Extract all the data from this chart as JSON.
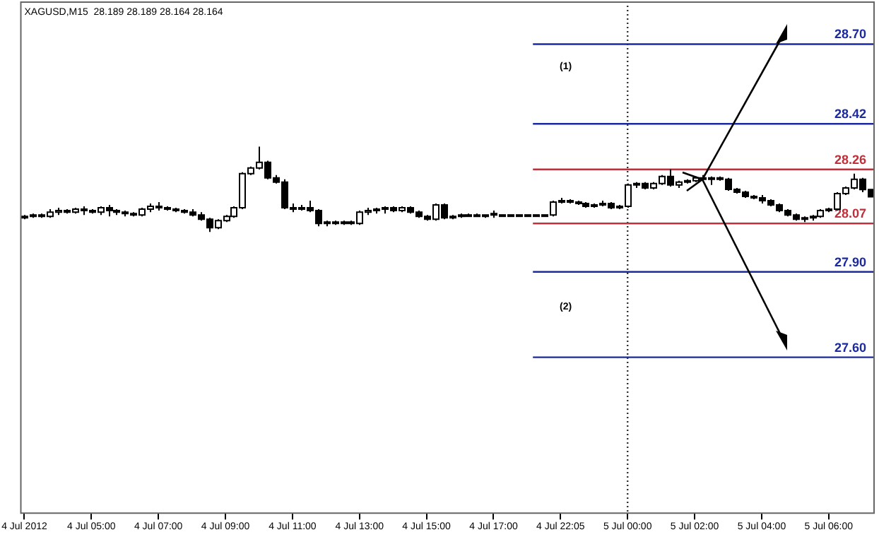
{
  "chart_data": {
    "type": "candlestick",
    "title": "XAGUSD,M15  28.189 28.189 28.164 28.164",
    "categories": [
      "4 Jul 2012",
      null,
      null,
      null,
      null,
      null,
      null,
      null,
      "4 Jul 05:00",
      null,
      null,
      null,
      null,
      null,
      null,
      null,
      "4 Jul 07:00",
      null,
      null,
      null,
      null,
      null,
      null,
      null,
      "4 Jul 09:00",
      null,
      null,
      null,
      null,
      null,
      null,
      null,
      "4 Jul 11:00",
      null,
      null,
      null,
      null,
      null,
      null,
      null,
      "4 Jul 13:00",
      null,
      null,
      null,
      null,
      null,
      null,
      null,
      "4 Jul 15:00",
      null,
      null,
      null,
      null,
      null,
      null,
      null,
      "4 Jul 17:00",
      null,
      null,
      null,
      null,
      null,
      null,
      null,
      "4 Jul 22:05",
      null,
      null,
      null,
      null,
      null,
      null,
      null,
      "5 Jul 00:00",
      null,
      null,
      null,
      null,
      null,
      null,
      null,
      "5 Jul 02:00",
      null,
      null,
      null,
      null,
      null,
      null,
      null,
      "5 Jul 04:00",
      null,
      null,
      null,
      null,
      null,
      null,
      null,
      "5 Jul 06:00",
      null,
      null,
      null,
      null,
      null
    ],
    "ohlc": [
      [
        28.09,
        28.1,
        28.085,
        28.095
      ],
      [
        28.095,
        28.105,
        28.09,
        28.1
      ],
      [
        28.1,
        28.105,
        28.09,
        28.095
      ],
      [
        28.095,
        28.12,
        28.09,
        28.11
      ],
      [
        28.11,
        28.125,
        28.1,
        28.115
      ],
      [
        28.115,
        28.12,
        28.105,
        28.11
      ],
      [
        28.11,
        28.125,
        28.105,
        28.12
      ],
      [
        28.12,
        28.13,
        28.1,
        28.115
      ],
      [
        28.115,
        28.12,
        28.105,
        28.11
      ],
      [
        28.11,
        28.13,
        28.1,
        28.125
      ],
      [
        28.125,
        28.135,
        28.095,
        28.115
      ],
      [
        28.115,
        28.12,
        28.1,
        28.11
      ],
      [
        28.11,
        28.115,
        28.095,
        28.105
      ],
      [
        28.105,
        28.11,
        28.095,
        28.1
      ],
      [
        28.1,
        28.125,
        28.095,
        28.12
      ],
      [
        28.12,
        28.14,
        28.11,
        28.13
      ],
      [
        28.13,
        28.145,
        28.115,
        28.125
      ],
      [
        28.125,
        28.13,
        28.115,
        28.12
      ],
      [
        28.12,
        28.125,
        28.11,
        28.115
      ],
      [
        28.115,
        28.12,
        28.105,
        28.11
      ],
      [
        28.11,
        28.12,
        28.095,
        28.1
      ],
      [
        28.1,
        28.11,
        28.08,
        28.085
      ],
      [
        28.085,
        28.09,
        28.04,
        28.055
      ],
      [
        28.055,
        28.085,
        28.05,
        28.08
      ],
      [
        28.08,
        28.1,
        28.075,
        28.095
      ],
      [
        28.095,
        28.13,
        28.09,
        28.125
      ],
      [
        28.125,
        28.25,
        28.12,
        28.245
      ],
      [
        28.245,
        28.27,
        28.24,
        28.265
      ],
      [
        28.265,
        28.34,
        28.26,
        28.285
      ],
      [
        28.285,
        28.29,
        28.225,
        28.23
      ],
      [
        28.23,
        28.24,
        28.21,
        28.215
      ],
      [
        28.215,
        28.225,
        28.12,
        28.125
      ],
      [
        28.125,
        28.14,
        28.11,
        28.12
      ],
      [
        28.12,
        28.135,
        28.115,
        28.125
      ],
      [
        28.125,
        28.15,
        28.11,
        28.115
      ],
      [
        28.115,
        28.12,
        28.06,
        28.07
      ],
      [
        28.07,
        28.08,
        28.06,
        28.075
      ],
      [
        28.075,
        28.08,
        28.065,
        28.07
      ],
      [
        28.07,
        28.08,
        28.065,
        28.075
      ],
      [
        28.075,
        28.08,
        28.065,
        28.07
      ],
      [
        28.07,
        28.115,
        28.065,
        28.11
      ],
      [
        28.11,
        28.125,
        28.1,
        28.115
      ],
      [
        28.115,
        28.125,
        28.105,
        28.12
      ],
      [
        28.12,
        28.13,
        28.105,
        28.125
      ],
      [
        28.125,
        28.13,
        28.11,
        28.115
      ],
      [
        28.115,
        28.13,
        28.11,
        28.125
      ],
      [
        28.125,
        28.13,
        28.105,
        28.11
      ],
      [
        28.11,
        28.115,
        28.09,
        28.095
      ],
      [
        28.095,
        28.1,
        28.08,
        28.085
      ],
      [
        28.085,
        28.14,
        28.08,
        28.135
      ],
      [
        28.135,
        28.14,
        28.085,
        28.09
      ],
      [
        28.09,
        28.1,
        28.085,
        28.095
      ],
      [
        28.095,
        28.105,
        28.09,
        28.1
      ],
      [
        28.1,
        28.105,
        28.095,
        28.1
      ],
      [
        28.1,
        28.105,
        28.095,
        28.095
      ],
      [
        28.095,
        28.1,
        28.09,
        28.1
      ],
      [
        28.1,
        28.115,
        28.09,
        28.105
      ],
      [
        28.1,
        28.1,
        28.1,
        28.1
      ],
      [
        28.1,
        28.1,
        28.1,
        28.1
      ],
      [
        28.1,
        28.1,
        28.1,
        28.1
      ],
      [
        28.1,
        28.1,
        28.1,
        28.1
      ],
      [
        28.1,
        28.1,
        28.1,
        28.1
      ],
      [
        28.1,
        28.1,
        28.1,
        28.1
      ],
      [
        28.1,
        28.15,
        28.095,
        28.145
      ],
      [
        28.145,
        28.16,
        28.14,
        28.15
      ],
      [
        28.15,
        28.155,
        28.14,
        28.145
      ],
      [
        28.145,
        28.15,
        28.135,
        28.14
      ],
      [
        28.14,
        28.145,
        28.125,
        28.13
      ],
      [
        28.13,
        28.14,
        28.125,
        28.135
      ],
      [
        28.135,
        28.15,
        28.13,
        28.14
      ],
      [
        28.14,
        28.145,
        28.12,
        28.125
      ],
      [
        28.125,
        28.135,
        28.12,
        28.13
      ],
      [
        28.13,
        28.21,
        28.125,
        28.205
      ],
      [
        28.205,
        28.215,
        28.195,
        28.21
      ],
      [
        28.21,
        28.215,
        28.19,
        28.195
      ],
      [
        28.195,
        28.215,
        28.19,
        28.21
      ],
      [
        28.21,
        28.24,
        28.205,
        28.235
      ],
      [
        28.235,
        28.26,
        28.2,
        28.205
      ],
      [
        28.205,
        28.22,
        28.195,
        28.215
      ],
      [
        28.215,
        28.225,
        28.21,
        28.22
      ],
      [
        28.22,
        28.235,
        28.215,
        28.23
      ],
      [
        28.23,
        28.24,
        28.22,
        28.225
      ],
      [
        28.225,
        28.235,
        28.205,
        28.23
      ],
      [
        28.23,
        28.235,
        28.22,
        28.225
      ],
      [
        28.225,
        28.23,
        28.185,
        28.19
      ],
      [
        28.19,
        28.195,
        28.175,
        28.18
      ],
      [
        28.18,
        28.185,
        28.16,
        28.165
      ],
      [
        28.165,
        28.17,
        28.155,
        28.16
      ],
      [
        28.16,
        28.17,
        28.14,
        28.15
      ],
      [
        28.15,
        28.155,
        28.13,
        28.135
      ],
      [
        28.135,
        28.14,
        28.11,
        28.115
      ],
      [
        28.115,
        28.12,
        28.095,
        28.1
      ],
      [
        28.1,
        28.105,
        28.08,
        28.085
      ],
      [
        28.085,
        28.095,
        28.075,
        28.09
      ],
      [
        28.09,
        28.1,
        28.08,
        28.095
      ],
      [
        28.095,
        28.12,
        28.09,
        28.115
      ],
      [
        28.115,
        28.125,
        28.11,
        28.12
      ],
      [
        28.12,
        28.18,
        28.115,
        28.175
      ],
      [
        28.175,
        28.2,
        28.17,
        28.195
      ],
      [
        28.195,
        28.245,
        28.19,
        28.225
      ],
      [
        28.225,
        28.23,
        28.18,
        28.189
      ],
      [
        28.189,
        28.189,
        28.164,
        28.164
      ]
    ],
    "ylim": [
      27.05,
      28.85
    ],
    "tick_labels": "x",
    "ref_lines": [
      {
        "axis": "x",
        "value": "5 Jul 00:00",
        "label": null,
        "color": "#333333",
        "line_style": "dotted"
      },
      {
        "axis": "y",
        "value": 28.7,
        "label": "28.70",
        "color": "#1c2aa0"
      },
      {
        "axis": "y",
        "value": 28.42,
        "label": "28.42",
        "color": "#1c2aa0"
      },
      {
        "axis": "y",
        "value": 28.26,
        "label": "28.26",
        "color": "#c0303a"
      },
      {
        "axis": "y",
        "value": 28.07,
        "label": "28.07",
        "color": "#c0303a"
      },
      {
        "axis": "y",
        "value": 27.9,
        "label": "27.90",
        "color": "#1c2aa0"
      },
      {
        "axis": "y",
        "value": 27.6,
        "label": "27.60",
        "color": "#1c2aa0"
      }
    ],
    "annotations": [
      "(1)",
      "(2)"
    ]
  }
}
